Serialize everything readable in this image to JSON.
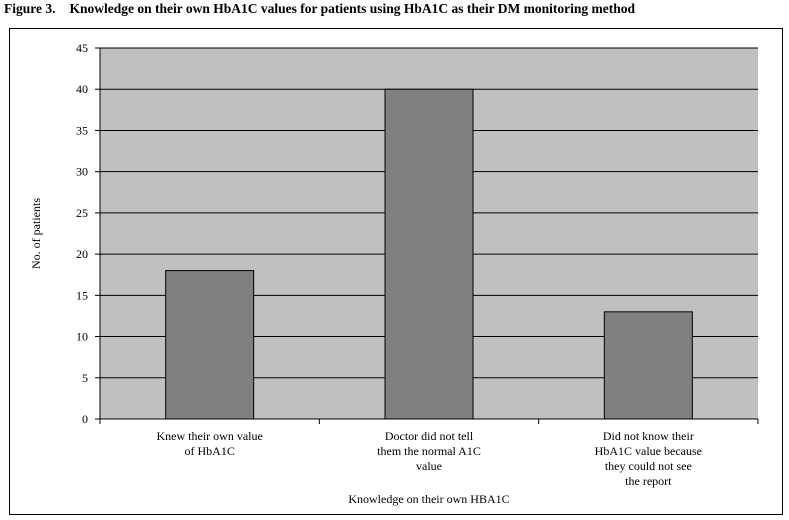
{
  "figure": {
    "number": "Figure 3.",
    "caption": "Knowledge on their own HbA1C values for patients using HbA1C as their DM monitoring method"
  },
  "chart_data": {
    "type": "bar",
    "categories": [
      [
        "Knew their own value",
        "of HbA1C"
      ],
      [
        "Doctor did not tell",
        "them the normal A1C",
        "value"
      ],
      [
        "Did not know their",
        "HbA1C value because",
        "they could not see",
        "the report"
      ]
    ],
    "values": [
      18,
      40,
      13
    ],
    "xlabel": "Knowledge on their own HBA1C",
    "ylabel": "No. of patients",
    "ylim": [
      0,
      45
    ],
    "yticks": [
      0,
      5,
      10,
      15,
      20,
      25,
      30,
      35,
      40,
      45
    ],
    "grid": true,
    "colors": {
      "plot_bg": "#c0c0c0",
      "bar": "#808080",
      "grid": "#000000"
    }
  }
}
